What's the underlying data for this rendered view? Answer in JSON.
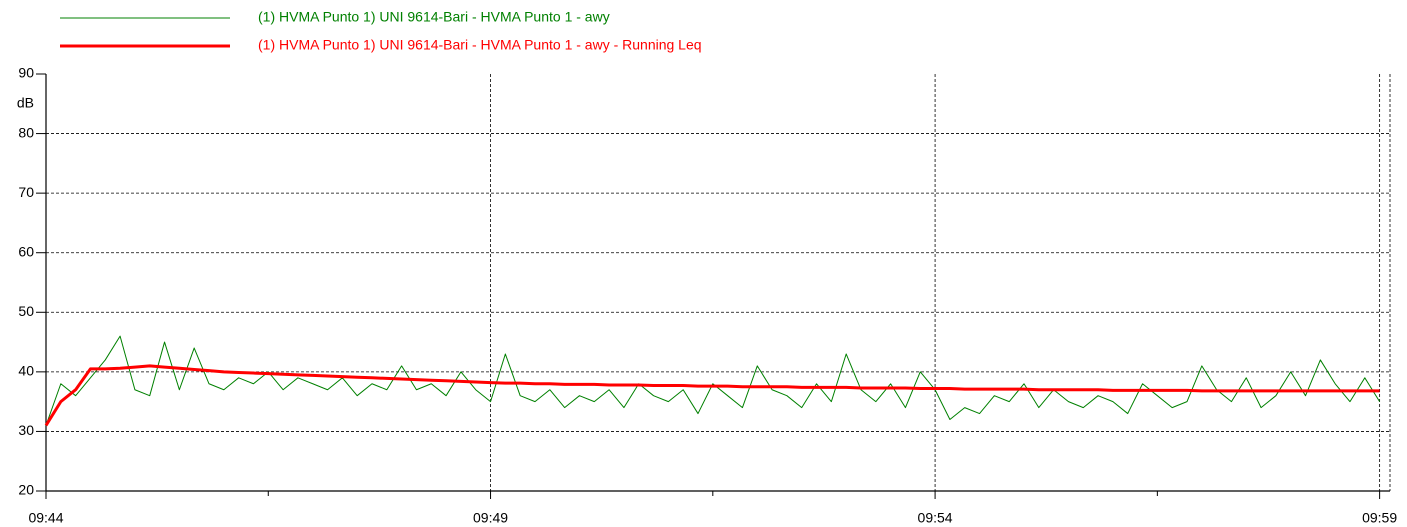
{
  "chart_data": {
    "type": "line",
    "ylabel": "dB",
    "ylim": [
      20,
      90
    ],
    "yticks": [
      20,
      30,
      40,
      50,
      60,
      70,
      80,
      90
    ],
    "xlim": [
      "09:44:00",
      "09:59:07"
    ],
    "xticks": [
      "09:44",
      "09:49",
      "09:54",
      "09:59"
    ],
    "xminorticks": [
      "09:46:30",
      "09:51:30",
      "09:56:30"
    ],
    "grid": true,
    "legend": "top-left",
    "x": [
      "09:44:00",
      "09:44:10",
      "09:44:20",
      "09:44:30",
      "09:44:40",
      "09:44:50",
      "09:45:00",
      "09:45:10",
      "09:45:20",
      "09:45:30",
      "09:45:40",
      "09:45:50",
      "09:46:00",
      "09:46:10",
      "09:46:20",
      "09:46:30",
      "09:46:40",
      "09:46:50",
      "09:47:00",
      "09:47:10",
      "09:47:20",
      "09:47:30",
      "09:47:40",
      "09:47:50",
      "09:48:00",
      "09:48:10",
      "09:48:20",
      "09:48:30",
      "09:48:40",
      "09:48:50",
      "09:49:00",
      "09:49:10",
      "09:49:20",
      "09:49:30",
      "09:49:40",
      "09:49:50",
      "09:50:00",
      "09:50:10",
      "09:50:20",
      "09:50:30",
      "09:50:40",
      "09:50:50",
      "09:51:00",
      "09:51:10",
      "09:51:20",
      "09:51:30",
      "09:51:40",
      "09:51:50",
      "09:52:00",
      "09:52:10",
      "09:52:20",
      "09:52:30",
      "09:52:40",
      "09:52:50",
      "09:53:00",
      "09:53:10",
      "09:53:20",
      "09:53:30",
      "09:53:40",
      "09:53:50",
      "09:54:00",
      "09:54:10",
      "09:54:20",
      "09:54:30",
      "09:54:40",
      "09:54:50",
      "09:55:00",
      "09:55:10",
      "09:55:20",
      "09:55:30",
      "09:55:40",
      "09:55:50",
      "09:56:00",
      "09:56:10",
      "09:56:20",
      "09:56:30",
      "09:56:40",
      "09:56:50",
      "09:57:00",
      "09:57:10",
      "09:57:20",
      "09:57:30",
      "09:57:40",
      "09:57:50",
      "09:58:00",
      "09:58:10",
      "09:58:20",
      "09:58:30",
      "09:58:40",
      "09:58:50",
      "09:59:00"
    ],
    "series": [
      {
        "name": "(1) HVMA Punto 1) UNI 9614-Bari - HVMA Punto 1 - awy",
        "color": "#008000",
        "width": 1,
        "values": [
          31,
          38,
          36,
          39,
          42,
          46,
          37,
          36,
          45,
          37,
          44,
          38,
          37,
          39,
          38,
          40,
          37,
          39,
          38,
          37,
          39,
          36,
          38,
          37,
          41,
          37,
          38,
          36,
          40,
          37,
          35,
          43,
          36,
          35,
          37,
          34,
          36,
          35,
          37,
          34,
          38,
          36,
          35,
          37,
          33,
          38,
          36,
          34,
          41,
          37,
          36,
          34,
          38,
          35,
          43,
          37,
          35,
          38,
          34,
          40,
          37,
          32,
          34,
          33,
          36,
          35,
          38,
          34,
          37,
          35,
          34,
          36,
          35,
          33,
          38,
          36,
          34,
          35,
          41,
          37,
          35,
          39,
          34,
          36,
          40,
          36,
          42,
          38,
          35,
          39,
          35
        ]
      },
      {
        "name": "(1) HVMA Punto 1) UNI 9614-Bari - HVMA Punto 1 - awy - Running Leq",
        "color": "#ff0000",
        "width": 3,
        "values": [
          31,
          35,
          37,
          40.5,
          40.5,
          40.6,
          40.8,
          41,
          40.8,
          40.6,
          40.4,
          40.2,
          40,
          39.9,
          39.8,
          39.7,
          39.6,
          39.5,
          39.4,
          39.3,
          39.2,
          39.1,
          39,
          38.9,
          38.8,
          38.7,
          38.6,
          38.5,
          38.4,
          38.3,
          38.2,
          38.1,
          38.1,
          38,
          38,
          37.9,
          37.9,
          37.9,
          37.8,
          37.8,
          37.8,
          37.7,
          37.7,
          37.7,
          37.6,
          37.6,
          37.6,
          37.5,
          37.5,
          37.5,
          37.5,
          37.4,
          37.4,
          37.4,
          37.4,
          37.3,
          37.3,
          37.3,
          37.3,
          37.2,
          37.2,
          37.2,
          37.1,
          37.1,
          37.1,
          37.1,
          37.1,
          37,
          37,
          37,
          37,
          37,
          36.9,
          36.9,
          36.9,
          36.9,
          36.9,
          36.9,
          36.8,
          36.8,
          36.8,
          36.8,
          36.8,
          36.8,
          36.8,
          36.8,
          36.8,
          36.8,
          36.8,
          36.8,
          36.8
        ]
      }
    ]
  }
}
